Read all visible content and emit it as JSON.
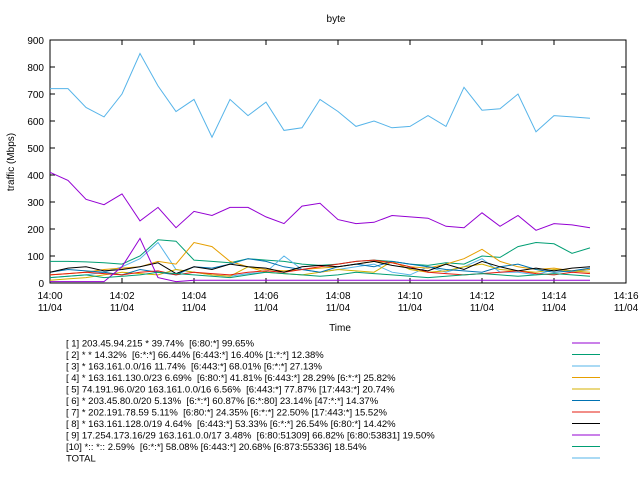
{
  "chart_data": {
    "type": "line",
    "title": "byte",
    "x_label": "Time",
    "y_label": "traffic (Mbps)",
    "x": [
      "14:00:00",
      "14:00:30",
      "14:01:00",
      "14:01:30",
      "14:02:00",
      "14:02:30",
      "14:03:00",
      "14:03:30",
      "14:04:00",
      "14:04:30",
      "14:05:00",
      "14:05:30",
      "14:06:00",
      "14:06:30",
      "14:07:00",
      "14:07:30",
      "14:08:00",
      "14:08:30",
      "14:09:00",
      "14:09:30",
      "14:10:00",
      "14:10:30",
      "14:11:00",
      "14:11:30",
      "14:12:00",
      "14:12:30",
      "14:13:00",
      "14:13:30",
      "14:14:00",
      "14:14:30",
      "14:15:00"
    ],
    "xlim": [
      "14:00:00",
      "14:16:00"
    ],
    "xticks": [
      {
        "value": "14:00:00",
        "label": "14:00\n11/04"
      },
      {
        "value": "14:02:00",
        "label": "14:02\n11/04"
      },
      {
        "value": "14:04:00",
        "label": "14:04\n11/04"
      },
      {
        "value": "14:06:00",
        "label": "14:06\n11/04"
      },
      {
        "value": "14:08:00",
        "label": "14:08\n11/04"
      },
      {
        "value": "14:10:00",
        "label": "14:10\n11/04"
      },
      {
        "value": "14:12:00",
        "label": "14:12\n11/04"
      },
      {
        "value": "14:14:00",
        "label": "14:14\n11/04"
      },
      {
        "value": "14:16:00",
        "label": "14:16\n11/04"
      }
    ],
    "ylim": [
      0,
      900
    ],
    "yticks": [
      0,
      100,
      200,
      300,
      400,
      500,
      600,
      700,
      800,
      900
    ],
    "series": [
      {
        "name": "[ 1] 203.45.94.215 * 39.74%  [6:80:*] 99.65%",
        "color": "#9400d3",
        "values": [
          410,
          380,
          310,
          290,
          330,
          230,
          280,
          205,
          265,
          250,
          280,
          280,
          245,
          220,
          285,
          295,
          235,
          220,
          225,
          250,
          245,
          240,
          210,
          205,
          260,
          210,
          250,
          195,
          220,
          215,
          205
        ]
      },
      {
        "name": "[ 2] * * 14.32%  [6:*:*] 66.44% [6:443:*] 16.40% [1:*:*] 12.38%",
        "color": "#009e73",
        "values": [
          80,
          80,
          78,
          75,
          70,
          100,
          160,
          155,
          85,
          80,
          75,
          90,
          85,
          80,
          70,
          65,
          70,
          80,
          85,
          80,
          70,
          65,
          75,
          70,
          100,
          95,
          135,
          150,
          145,
          110,
          130
        ]
      },
      {
        "name": "[ 3] * 163.161.0.0/16 11.74%  [6:443:*] 68.01% [6:*:*] 27.13%",
        "color": "#56b4e9",
        "values": [
          20,
          25,
          30,
          40,
          60,
          90,
          150,
          50,
          40,
          30,
          25,
          35,
          40,
          100,
          50,
          40,
          50,
          60,
          70,
          40,
          30,
          60,
          40,
          60,
          90,
          40,
          40,
          30,
          50,
          40,
          50
        ]
      },
      {
        "name": "[ 4] * 163.161.130.0/23 6.69%  [6:80:*] 41.81% [6:443:*] 28.29% [6:*:*] 25.82%",
        "color": "#e69f00",
        "values": [
          30,
          35,
          40,
          50,
          55,
          60,
          80,
          70,
          150,
          135,
          80,
          60,
          50,
          45,
          50,
          55,
          60,
          70,
          80,
          75,
          60,
          55,
          70,
          90,
          125,
          80,
          60,
          50,
          55,
          45,
          50
        ]
      },
      {
        "name": "[ 5] 74.191.96.0/20 163.161.0.0/16 6.56%  [6:443:*] 77.87% [17:443:*] 20.74%",
        "color": "#d4b000",
        "values": [
          10,
          15,
          20,
          30,
          40,
          35,
          30,
          50,
          40,
          30,
          25,
          60,
          40,
          35,
          30,
          40,
          50,
          45,
          40,
          80,
          50,
          40,
          45,
          60,
          70,
          50,
          45,
          40,
          50,
          45,
          40
        ]
      },
      {
        "name": "[ 6] * 203.45.80.0/20 5.13%  [6:*:*] 60.87% [6:*:80] 23.14% [47:*:*] 14.37%",
        "color": "#0072b2",
        "values": [
          40,
          50,
          45,
          40,
          30,
          50,
          40,
          30,
          60,
          55,
          70,
          90,
          80,
          60,
          50,
          40,
          60,
          70,
          60,
          80,
          70,
          60,
          50,
          45,
          40,
          60,
          70,
          50,
          40,
          45,
          55
        ]
      },
      {
        "name": "[ 7] * 202.191.78.59 5.11%  [6:80:*] 24.35% [6:*:*] 22.50% [17:443:*] 15.52%",
        "color": "#e51e10",
        "values": [
          30,
          35,
          40,
          35,
          30,
          40,
          45,
          30,
          40,
          35,
          30,
          40,
          45,
          40,
          50,
          60,
          70,
          80,
          85,
          75,
          60,
          40,
          35,
          30,
          35,
          40,
          45,
          35,
          30,
          40,
          35
        ]
      },
      {
        "name": "[ 8] * 163.161.128.0/19 4.64%  [6:443:*] 53.33% [6:*:*] 26.54% [6:80:*] 14.42%",
        "color": "#000000",
        "values": [
          40,
          55,
          60,
          45,
          50,
          60,
          75,
          35,
          60,
          50,
          70,
          60,
          55,
          40,
          60,
          65,
          60,
          70,
          80,
          65,
          55,
          45,
          70,
          50,
          80,
          60,
          45,
          55,
          45,
          55,
          60
        ]
      },
      {
        "name": "[ 9] 17.254.173.16/29 163.161.0.0/17 3.48%  [6:80:51309] 66.82% [6:80:53831] 19.50%",
        "color": "#9400d3",
        "values": [
          5,
          5,
          5,
          5,
          60,
          165,
          20,
          5,
          10,
          10,
          10,
          10,
          10,
          10,
          10,
          10,
          10,
          10,
          10,
          10,
          10,
          10,
          10,
          10,
          10,
          10,
          10,
          10,
          10,
          10,
          10
        ]
      },
      {
        "name": "[10] *:: *:: 2.59%  [6:*:*] 58.08% [6:443:*] 20.68% [6:873:55336] 18.54%",
        "color": "#009e73",
        "values": [
          20,
          25,
          30,
          20,
          25,
          30,
          40,
          35,
          30,
          25,
          20,
          30,
          40,
          35,
          30,
          25,
          30,
          40,
          35,
          30,
          25,
          20,
          25,
          30,
          35,
          30,
          25,
          30,
          35,
          30,
          25
        ]
      },
      {
        "name": "TOTAL",
        "color": "#56b4e9",
        "values": [
          720,
          720,
          650,
          615,
          700,
          850,
          730,
          635,
          680,
          540,
          680,
          620,
          670,
          565,
          575,
          680,
          635,
          580,
          600,
          575,
          580,
          620,
          580,
          725,
          640,
          645,
          700,
          560,
          620,
          615,
          610
        ]
      }
    ]
  }
}
